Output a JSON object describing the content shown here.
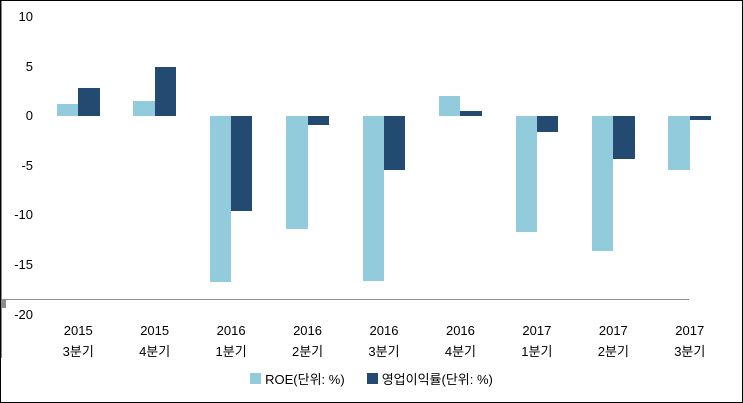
{
  "chart_data": {
    "type": "bar",
    "title": "",
    "xlabel": "",
    "ylabel": "",
    "categories": [
      {
        "year": "2015",
        "quarter": "3분기"
      },
      {
        "year": "2015",
        "quarter": "4분기"
      },
      {
        "year": "2016",
        "quarter": "1분기"
      },
      {
        "year": "2016",
        "quarter": "2분기"
      },
      {
        "year": "2016",
        "quarter": "3분기"
      },
      {
        "year": "2016",
        "quarter": "4분기"
      },
      {
        "year": "2017",
        "quarter": "1분기"
      },
      {
        "year": "2017",
        "quarter": "2분기"
      },
      {
        "year": "2017",
        "quarter": "3분기"
      }
    ],
    "series": [
      {
        "name": "ROE(단위: %)",
        "color": "#92CBDC",
        "values": [
          1.2,
          1.5,
          -16.7,
          -11.4,
          -16.6,
          2.0,
          -11.7,
          -13.6,
          -5.4
        ]
      },
      {
        "name": "영업이익률(단위: %)",
        "color": "#234A70",
        "values": [
          2.8,
          5.0,
          -9.6,
          -0.9,
          -5.4,
          0.5,
          -1.6,
          -4.3,
          -0.4
        ]
      }
    ],
    "ylim": [
      -20,
      10
    ],
    "yticks": [
      10,
      5,
      0,
      -5,
      -10,
      -15,
      -20
    ],
    "grid": false,
    "legend_position": "bottom",
    "axis_color": "#8C8C8C",
    "text_color": "#000000",
    "background": "#FFFFFF",
    "border_color": "#000000"
  }
}
